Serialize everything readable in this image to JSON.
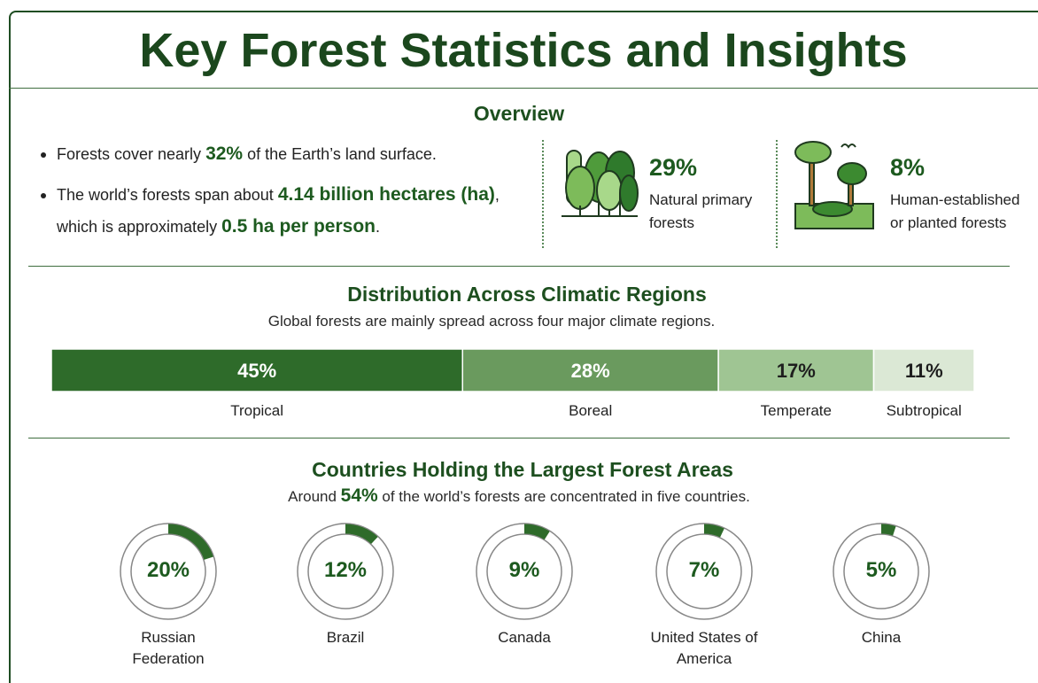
{
  "title": "Key Forest Statistics and Insights",
  "overview": {
    "heading": "Overview",
    "bullets": [
      [
        "Forests cover nearly ",
        "32%",
        " of the Earth’s land surface."
      ],
      [
        "The world’s forests span about ",
        "4.14 billion hectares (ha)",
        ", which is approximately ",
        "0.5 ha per person",
        "."
      ]
    ],
    "stats": [
      {
        "value": "29%",
        "text": "Natural primary forests"
      },
      {
        "value": "8%",
        "text": "Human-established or planted forests"
      }
    ]
  },
  "climate": {
    "heading": "Distribution Across Climatic Regions",
    "subtitle": "Global forests are mainly spread across four major climate regions.",
    "regions": [
      {
        "name": "Tropical",
        "value": 45,
        "label": "45%",
        "color": "#2e6b2a",
        "label_color": "#ffffff"
      },
      {
        "name": "Boreal",
        "value": 28,
        "label": "28%",
        "color": "#6a9a5e",
        "label_color": "#ffffff"
      },
      {
        "name": "Temperate",
        "value": 17,
        "label": "17%",
        "color": "#9fc593",
        "label_color": "#1e1e1e"
      },
      {
        "name": "Subtropical",
        "value": 11,
        "label": "11%",
        "color": "#dbe8d5",
        "label_color": "#1e1e1e"
      }
    ]
  },
  "countries": {
    "heading": "Countries Holding the Largest Forest Areas",
    "subtitle": [
      "Around ",
      "54%",
      " of the world’s forests are concentrated in five countries."
    ],
    "color": "#2e6b2a",
    "items": [
      {
        "name": "Russian Federation",
        "value": 20,
        "label": "20%"
      },
      {
        "name": "Brazil",
        "value": 12,
        "label": "12%"
      },
      {
        "name": "Canada",
        "value": 9,
        "label": "9%"
      },
      {
        "name": "United States of America",
        "value": 7,
        "label": "7%"
      },
      {
        "name": "China",
        "value": 5,
        "label": "5%"
      }
    ]
  }
}
